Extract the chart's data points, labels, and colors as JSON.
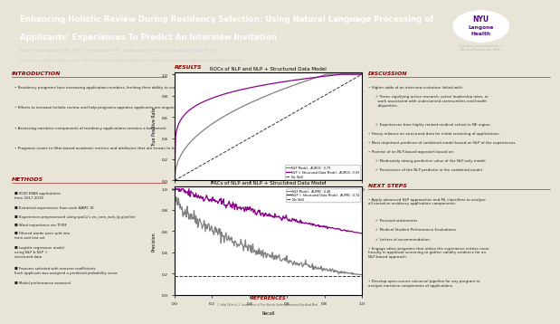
{
  "title_line1": "Enhancing Holistic Review During Residency Selection: Using Natural Language Processing of",
  "title_line2": "Applicants’ Experiences To Predict An Interview Invitation",
  "authors": "Arun Umesh Mahtani, MD, MS¹², Ilan Reinstein, MS¹, Marina Marin, MS¹, Jesse Burk-Rafel, MD, MHes¹",
  "email_line": "Email: arun.mahtani@nyu.edu | ¹ NYU Grossman School of Medicine, ² Richmond University Medical Center/Mount Sinai",
  "intro_header": "INTRODUCTION",
  "intro_bullets": [
    "Residency programs face increasing application numbers, limiting their ability to conduct holistic review.",
    "Efforts to increase holistic review and help programs appraise applicants are ongoing.¹²",
    "Assessing narrative components of residency applications remains a bottleneck.",
    "Programs resort to filter-based academic metrics and attributes that are known to have racial, gender, and other inequities.³⁵"
  ],
  "methods_header": "METHODS",
  "methods_items": [
    "6500 ERAS applications\nfrom 2017-2019",
    "Extracted experiences from each AAMC ID",
    "Experiences preprocessed using spaCy’s en_core_web_lg pipeline",
    "Word importance via TFIDF",
    "Filtered words were split into\ntrain and test set",
    "Logistic regression model\nusing NLP & NLP +\nstructured data",
    "Features selected with nonzero coefficients.\nEach applicant was assigned a predicted probability score",
    "Model performance assessed"
  ],
  "results_header": "RESULTS",
  "roc_title": "ROCs of NLP and NLP + Structured Data Model",
  "prc_title": "PRCs of NLP and NLP + Structured Data Model",
  "nlp_color": "#808080",
  "nlp_plus_color": "#8B008B",
  "roc_legend": [
    "NLP Model - AUROC: 0.79",
    "NLP + Structured Data Model - AUROC: 0.93",
    "No Skill"
  ],
  "prc_legend": [
    "NLP Model - AUPRC: 0.48",
    "NLP + Structured Data Model - AUPRC: 0.74",
    "No Skill"
  ],
  "discussion_header": "DISCUSSION",
  "discussion_bullets": [
    "Higher odds of an interview invitation linked with:",
    "✓ Terms signifying active research, active leadership roles, or\n  work associated with underserved communities and health\n  disparities.",
    "✓ Experiences from highly ranked medical school in NE region.",
    "Heavy reliance on structured data for initial screening of applications.",
    "Most important predictor of combined model based on NLP of the experiences",
    "Promise of an NLP-based approach based on:",
    "✓ Moderately strong predictive value of the NLP-only model",
    "✓ Persistence of the NLP predictor in the combined model"
  ],
  "next_steps_header": "NEXT STEPS",
  "next_steps_bullets": [
    "Apply advanced NLP approaches and ML classifiers to analyze\nall narrative residency application components:",
    "✓ Personal statements",
    "✓ Medical Student Performance Evaluations",
    "✓ Letters of recommendation.",
    "Engage other programs that utilize the experience entries more\nheavily in applicant screening to gather validity evidence for an\nNLP-based approach.",
    "Develop open-source universal pipeline for any program to\nanalyze narrative components of applications."
  ],
  "references_header": "REFERENCES",
  "header_bg": "#2b2b2b",
  "body_bg": "#e8e4d8",
  "section_title_color": "#8B0000",
  "text_color": "#222222"
}
